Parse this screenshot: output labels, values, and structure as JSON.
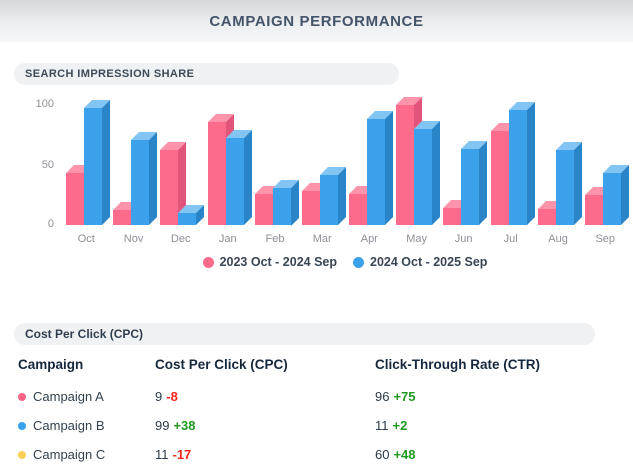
{
  "header": {
    "title": "CAMPAIGN PERFORMANCE"
  },
  "sections": {
    "impression_title": "SEARCH IMPRESSION SHARE",
    "cpc_title": "Cost Per Click (CPC)"
  },
  "chart_data": {
    "type": "bar",
    "style": "3d-column",
    "title": "SEARCH IMPRESSION SHARE",
    "categories": [
      "Oct",
      "Nov",
      "Dec",
      "Jan",
      "Feb",
      "Mar",
      "Apr",
      "May",
      "Jun",
      "Jul",
      "Aug",
      "Sep"
    ],
    "series": [
      {
        "name": "2023 Oct - 2024 Sep",
        "color": "#fc6b8c",
        "color_top": "#fd94ac",
        "color_side": "#e05579",
        "values": [
          43,
          12,
          62,
          85,
          26,
          28,
          26,
          99,
          14,
          78,
          13,
          25
        ]
      },
      {
        "name": "2024 Oct - 2025 Sep",
        "color": "#3ba1ea",
        "color_top": "#82c5f2",
        "color_side": "#2a84c8",
        "values": [
          97,
          70,
          10,
          72,
          31,
          41,
          88,
          79,
          63,
          95,
          62,
          43
        ]
      }
    ],
    "xlabel": "",
    "ylabel": "",
    "yticks": [
      0,
      50,
      100
    ],
    "ylim": [
      0,
      100
    ],
    "grid": false,
    "legend_position": "bottom"
  },
  "table": {
    "headers": [
      "Campaign",
      "Cost Per Click (CPC)",
      "Click-Through Rate (CTR)"
    ],
    "rows": [
      {
        "name": "Campaign A",
        "dot_color": "#ff6384",
        "cpc": "9",
        "cpc_delta": "-8",
        "ctr": "96",
        "ctr_delta": "+75"
      },
      {
        "name": "Campaign B",
        "dot_color": "#36a2eb",
        "cpc": "99",
        "cpc_delta": "+38",
        "ctr": "11",
        "ctr_delta": "+2"
      },
      {
        "name": "Campaign C",
        "dot_color": "#ffce56",
        "cpc": "11",
        "cpc_delta": "-17",
        "ctr": "60",
        "ctr_delta": "+48"
      }
    ]
  },
  "colors": {
    "title_text": "#44546a",
    "delta_up": "#1f9a1f",
    "delta_down": "#f4281d",
    "axis_text": "#8d9096",
    "pill_bg": "#f0f1f3"
  }
}
